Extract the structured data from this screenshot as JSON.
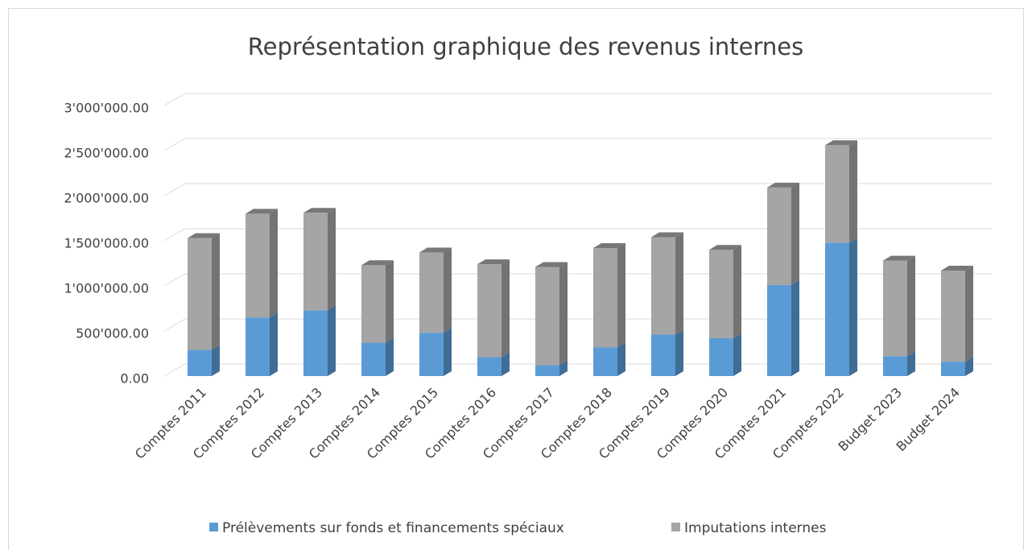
{
  "chart_data": {
    "type": "bar3d_stacked",
    "title": "Représentation graphique des revenus internes",
    "categories": [
      "Comptes 2011",
      "Comptes 2012",
      "Comptes 2013",
      "Comptes 2014",
      "Comptes 2015",
      "Comptes 2016",
      "Comptes 2017",
      "Comptes 2018",
      "Comptes 2019",
      "Comptes 2020",
      "Comptes 2021",
      "Comptes 2022",
      "Budget 2023",
      "Budget 2024"
    ],
    "series": [
      {
        "name": "Prélèvements sur fonds et financements spéciaux",
        "color": "#5b9bd5",
        "values": [
          290000,
          650000,
          730000,
          370000,
          480000,
          210000,
          120000,
          320000,
          460000,
          420000,
          1010000,
          1480000,
          220000,
          160000
        ]
      },
      {
        "name": "Imputations internes",
        "color": "#a5a5a5",
        "values": [
          1240000,
          1150000,
          1080000,
          860000,
          890000,
          1030000,
          1090000,
          1100000,
          1080000,
          980000,
          1080000,
          1080000,
          1060000,
          1010000
        ]
      }
    ],
    "ylim": [
      0,
      3000000
    ],
    "yticks": [
      {
        "value": 0,
        "label": "0.00"
      },
      {
        "value": 500000,
        "label": "500'000.00"
      },
      {
        "value": 1000000,
        "label": "1'000'000.00"
      },
      {
        "value": 1500000,
        "label": "1'500'000.00"
      },
      {
        "value": 2000000,
        "label": "2'000'000.00"
      },
      {
        "value": 2500000,
        "label": "2'500'000.00"
      },
      {
        "value": 3000000,
        "label": "3'000'000.00"
      }
    ],
    "grid": true,
    "legend": "bottom"
  }
}
